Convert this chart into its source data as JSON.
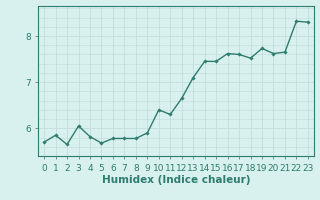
{
  "x": [
    0,
    1,
    2,
    3,
    4,
    5,
    6,
    7,
    8,
    9,
    10,
    11,
    12,
    13,
    14,
    15,
    16,
    17,
    18,
    19,
    20,
    21,
    22,
    23
  ],
  "y": [
    5.7,
    5.85,
    5.65,
    6.05,
    5.82,
    5.68,
    5.78,
    5.78,
    5.78,
    5.9,
    6.4,
    6.3,
    6.65,
    7.1,
    7.45,
    7.45,
    7.62,
    7.6,
    7.52,
    7.73,
    7.62,
    7.65,
    8.32,
    8.3
  ],
  "line_color": "#2e7d6e",
  "marker": "D",
  "marker_size": 1.8,
  "bg_color": "#d8f0ee",
  "grid_color": "#c4dedd",
  "xlabel": "Humidex (Indice chaleur)",
  "yticks": [
    6,
    7,
    8
  ],
  "xticks": [
    0,
    1,
    2,
    3,
    4,
    5,
    6,
    7,
    8,
    9,
    10,
    11,
    12,
    13,
    14,
    15,
    16,
    17,
    18,
    19,
    20,
    21,
    22,
    23
  ],
  "xlim": [
    -0.5,
    23.5
  ],
  "ylim": [
    5.4,
    8.65
  ],
  "xlabel_fontsize": 7.5,
  "tick_fontsize": 6.5,
  "linewidth": 1.0
}
